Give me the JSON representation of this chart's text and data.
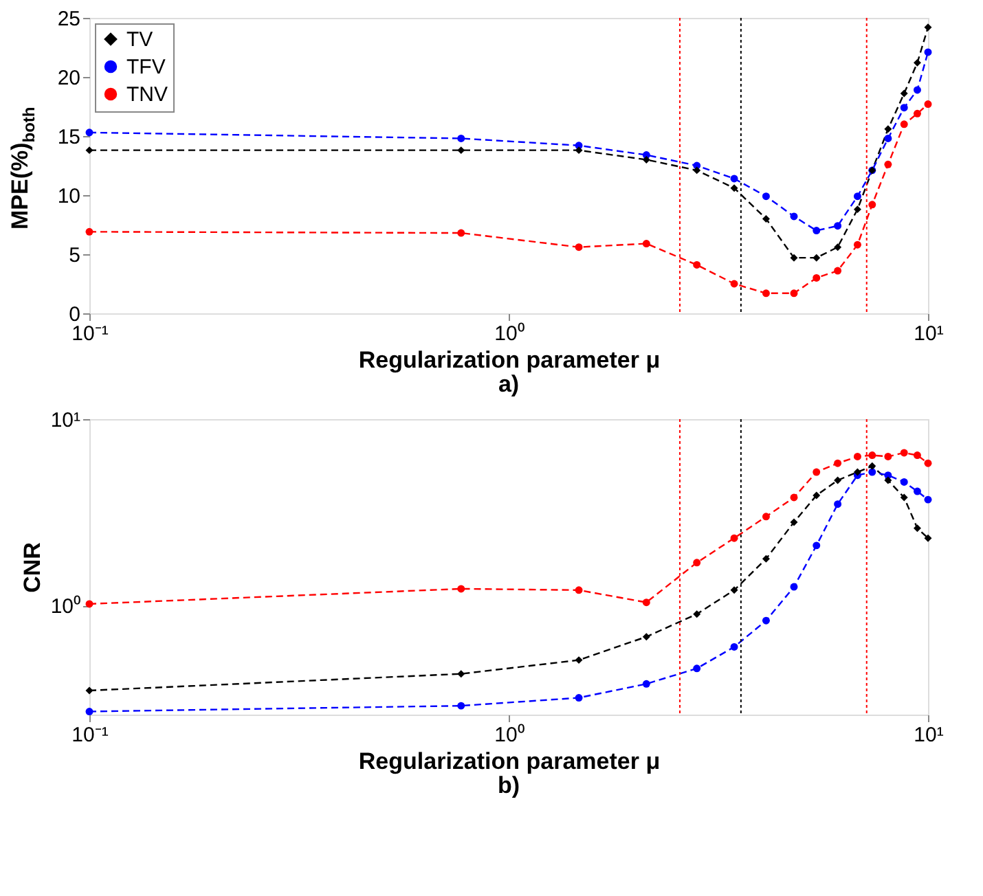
{
  "chart_data": [
    {
      "type": "line",
      "xlabel": "Regularization parameter μ",
      "ylabel": "MPE(%)$_{both}$",
      "annotations": [
        "a)"
      ],
      "x": [
        0.1,
        0.77,
        1.47,
        2.13,
        2.81,
        3.45,
        4.11,
        4.79,
        5.42,
        6.09,
        6.79,
        7.36,
        8.03,
        8.77,
        9.43,
        10
      ],
      "series": [
        {
          "name": "TV",
          "color": "#000000",
          "marker": "diamond",
          "values": [
            13.8,
            13.8,
            13.8,
            13.0,
            12.1,
            10.6,
            8.0,
            4.7,
            4.7,
            5.6,
            8.8,
            12.1,
            15.6,
            18.6,
            21.2,
            24.2
          ]
        },
        {
          "name": "TFV",
          "color": "#0000ff",
          "marker": "circle",
          "values": [
            15.3,
            14.8,
            14.2,
            13.4,
            12.5,
            11.4,
            9.9,
            8.2,
            7.0,
            7.4,
            9.9,
            12.1,
            14.8,
            17.4,
            18.9,
            22.1
          ]
        },
        {
          "name": "TNV",
          "color": "#ff0000",
          "marker": "circle",
          "values": [
            6.9,
            6.8,
            5.6,
            5.9,
            4.1,
            2.5,
            1.7,
            1.7,
            3.0,
            3.6,
            5.8,
            9.2,
            12.6,
            16.0,
            16.9,
            17.7
          ]
        }
      ],
      "log": "x",
      "xlim": [
        0.1,
        10
      ],
      "xticks": [
        {
          "value": 0.1,
          "label": "10⁻¹"
        },
        {
          "value": 1,
          "label": "10⁰"
        },
        {
          "value": 10,
          "label": "10¹"
        }
      ],
      "ylim": [
        0,
        25
      ],
      "yticks": [
        0,
        5,
        10,
        15,
        20,
        25
      ],
      "ref_lines": [
        {
          "axis": "x",
          "value": 2.56,
          "color": "#ff0000",
          "line_style": "dotted"
        },
        {
          "axis": "x",
          "value": 3.58,
          "color": "#000000",
          "line_style": "dotted"
        },
        {
          "axis": "x",
          "value": 7.14,
          "color": "#ff0000",
          "line_style": "dotted"
        }
      ],
      "line_style": "dashed",
      "legend": "top left",
      "grid": false
    },
    {
      "type": "line",
      "xlabel": "Regularization parameter μ",
      "ylabel": "CNR",
      "annotations": [
        "b)"
      ],
      "x": [
        0.1,
        0.77,
        1.47,
        2.13,
        2.81,
        3.45,
        4.11,
        4.79,
        5.42,
        6.09,
        6.79,
        7.36,
        8.03,
        8.77,
        9.43,
        10
      ],
      "series": [
        {
          "name": "TV",
          "color": "#000000",
          "marker": "diamond",
          "values": [
            0.35,
            0.43,
            0.51,
            0.68,
            0.9,
            1.21,
            1.78,
            2.8,
            3.9,
            4.7,
            5.2,
            5.6,
            4.7,
            3.8,
            2.6,
            2.3
          ]
        },
        {
          "name": "TFV",
          "color": "#0000ff",
          "marker": "circle",
          "values": [
            0.27,
            0.29,
            0.32,
            0.38,
            0.46,
            0.6,
            0.83,
            1.26,
            2.1,
            3.5,
            5.0,
            5.2,
            5.0,
            4.6,
            4.1,
            3.7
          ]
        },
        {
          "name": "TNV",
          "color": "#ff0000",
          "marker": "circle",
          "values": [
            1.02,
            1.23,
            1.21,
            1.04,
            1.7,
            2.3,
            3.0,
            3.8,
            5.2,
            5.8,
            6.3,
            6.4,
            6.3,
            6.6,
            6.4,
            5.8
          ]
        }
      ],
      "log": "xy",
      "xlim": [
        0.1,
        10
      ],
      "xticks": [
        {
          "value": 0.1,
          "label": "10⁻¹"
        },
        {
          "value": 1,
          "label": "10⁰"
        },
        {
          "value": 10,
          "label": "10¹"
        }
      ],
      "ylim": [
        0.26,
        10
      ],
      "yticks": [
        {
          "value": 1,
          "label": "10⁰"
        },
        {
          "value": 10,
          "label": "10¹"
        }
      ],
      "ref_lines": [
        {
          "axis": "x",
          "value": 2.56,
          "color": "#ff0000",
          "line_style": "dotted"
        },
        {
          "axis": "x",
          "value": 3.58,
          "color": "#000000",
          "line_style": "dotted"
        },
        {
          "axis": "x",
          "value": 7.14,
          "color": "#ff0000",
          "line_style": "dotted"
        }
      ],
      "line_style": "dashed",
      "legend": "top left",
      "grid": false
    }
  ]
}
